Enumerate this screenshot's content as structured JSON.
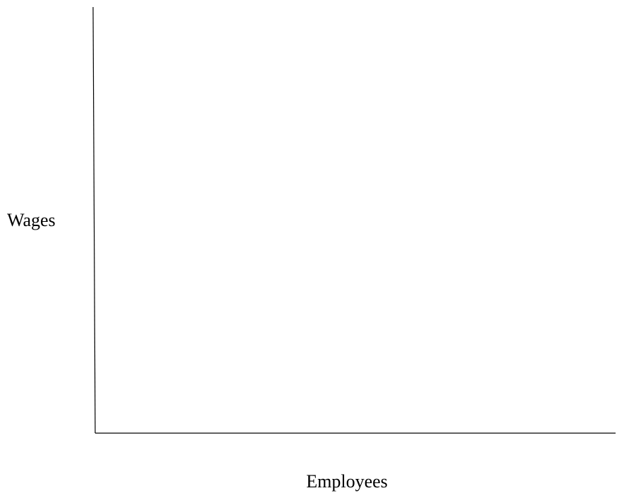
{
  "chart_data": {
    "type": "line",
    "title": "",
    "xlabel": "Employees",
    "ylabel": "Wages",
    "series": [],
    "grid": false,
    "legend": "none",
    "colors": {
      "axis": "#000000",
      "background": "#ffffff"
    }
  }
}
